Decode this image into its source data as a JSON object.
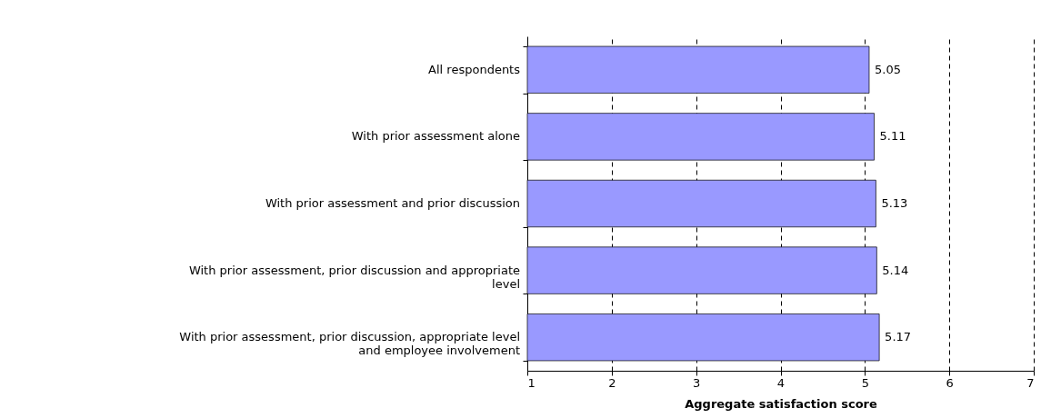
{
  "chart_data": {
    "type": "bar",
    "orientation": "horizontal",
    "xlabel": "Aggregate satisfaction score",
    "categories": [
      "All respondents",
      "With prior assessment alone",
      "With prior assessment and prior discussion",
      "With prior assessment, prior discussion and appropriate level",
      "With prior assessment, prior discussion, appropriate level and employee involvement"
    ],
    "values": [
      5.05,
      5.11,
      5.13,
      5.14,
      5.17
    ],
    "color": "#9999ff",
    "xlim": [
      1,
      7
    ],
    "xticks": [
      1,
      2,
      3,
      4,
      5,
      6,
      7
    ],
    "grid": "x",
    "line_style": "dashed",
    "data_labels": true
  }
}
